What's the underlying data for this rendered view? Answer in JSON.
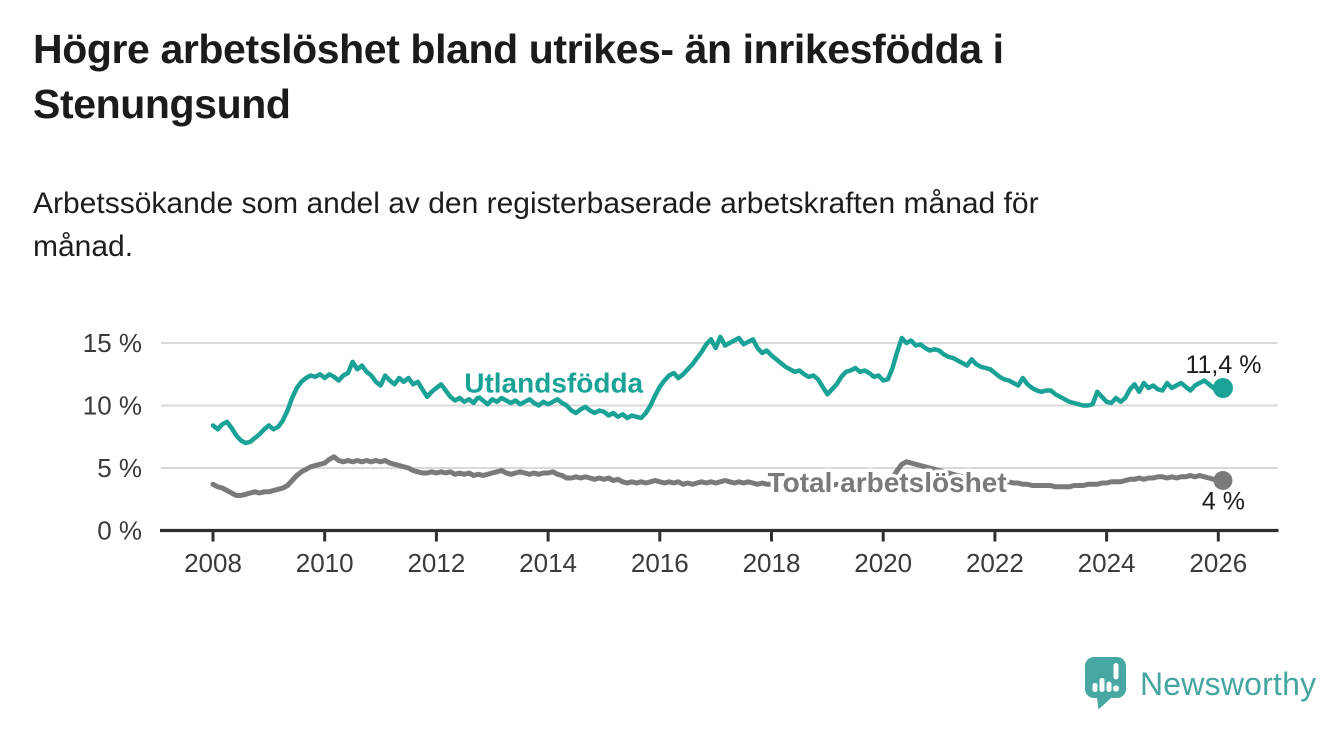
{
  "header": {
    "title_lines": [
      "Högre arbetslöshet bland utrikes- än inrikesfödda i",
      "Stenungsund"
    ],
    "subtitle_lines": [
      "Arbetssökande som andel av den registerbaserade arbetskraften månad för",
      "månad."
    ]
  },
  "branding": {
    "logo_text": "Newsworthy",
    "logo_icon": "bar-chart-speech-bubble-icon",
    "logo_color": "#45a5a0"
  },
  "chart_data": {
    "type": "line",
    "unit": "%",
    "grid": "horizontal",
    "x_start_year": 2008,
    "points_per_year": 12,
    "xlim": [
      2007.1,
      2027.1
    ],
    "ylim": [
      0,
      16.6
    ],
    "x_ticks": [
      "2008",
      "2010",
      "2012",
      "2014",
      "2016",
      "2018",
      "2020",
      "2022",
      "2024",
      "2026"
    ],
    "x_tick_years": [
      2008,
      2010,
      2012,
      2014,
      2016,
      2018,
      2020,
      2022,
      2024,
      2026
    ],
    "y_ticks": [
      0,
      5,
      10,
      15
    ],
    "y_tick_labels": [
      "0 %",
      "5 %",
      "10 %",
      "15 %"
    ],
    "colors": {
      "utlandsfodda": "#1aa296",
      "total": "#7a7a7a",
      "gridline": "#d9d9d9",
      "axis": "#2e2e2e",
      "tick_text": "#3a3a3a"
    },
    "series": [
      {
        "name": "Utlandsfödda",
        "color": "#1aa296",
        "line_width": 4.5,
        "end_value": 11.4,
        "end_label": "11,4 %",
        "label_anchor": {
          "year": 2014.1,
          "value": 11.05
        },
        "values": [
          8.4,
          8.1,
          8.5,
          8.7,
          8.2,
          7.6,
          7.2,
          7.0,
          7.1,
          7.4,
          7.7,
          8.1,
          8.4,
          8.1,
          8.3,
          8.8,
          9.6,
          10.6,
          11.4,
          11.9,
          12.2,
          12.4,
          12.3,
          12.5,
          12.2,
          12.5,
          12.3,
          12.0,
          12.4,
          12.6,
          13.5,
          12.9,
          13.2,
          12.7,
          12.4,
          11.9,
          11.6,
          12.4,
          12.0,
          11.7,
          12.2,
          11.9,
          12.2,
          11.7,
          11.9,
          11.3,
          10.7,
          11.1,
          11.4,
          11.7,
          11.2,
          10.7,
          10.4,
          10.6,
          10.3,
          10.5,
          10.2,
          10.7,
          10.4,
          10.1,
          10.5,
          10.3,
          10.6,
          10.4,
          10.2,
          10.4,
          10.1,
          10.3,
          10.5,
          10.2,
          10.0,
          10.3,
          10.1,
          10.3,
          10.5,
          10.2,
          10.0,
          9.6,
          9.4,
          9.7,
          9.9,
          9.6,
          9.4,
          9.6,
          9.5,
          9.2,
          9.4,
          9.1,
          9.3,
          9.0,
          9.2,
          9.1,
          9.0,
          9.4,
          10.0,
          10.8,
          11.5,
          12.0,
          12.4,
          12.6,
          12.2,
          12.5,
          12.9,
          13.3,
          13.8,
          14.3,
          14.9,
          15.3,
          14.6,
          15.5,
          14.8,
          15.0,
          15.2,
          15.4,
          14.9,
          15.1,
          15.3,
          14.6,
          14.2,
          14.4,
          14.0,
          13.7,
          13.4,
          13.1,
          12.9,
          12.7,
          12.8,
          12.5,
          12.3,
          12.4,
          12.1,
          11.5,
          10.9,
          11.3,
          11.7,
          12.3,
          12.7,
          12.8,
          13.0,
          12.7,
          12.8,
          12.6,
          12.3,
          12.4,
          12.0,
          12.1,
          13.0,
          14.3,
          15.4,
          15.0,
          15.2,
          14.8,
          14.9,
          14.6,
          14.4,
          14.5,
          14.4,
          14.1,
          13.9,
          13.8,
          13.6,
          13.4,
          13.2,
          13.7,
          13.3,
          13.1,
          13.0,
          12.9,
          12.6,
          12.3,
          12.1,
          12.0,
          11.8,
          11.6,
          12.2,
          11.7,
          11.4,
          11.2,
          11.1,
          11.2,
          11.2,
          10.9,
          10.7,
          10.5,
          10.3,
          10.2,
          10.1,
          10.0,
          10.0,
          10.1,
          11.1,
          10.7,
          10.3,
          10.2,
          10.6,
          10.3,
          10.6,
          11.3,
          11.7,
          11.1,
          11.8,
          11.4,
          11.6,
          11.3,
          11.2,
          11.8,
          11.4,
          11.6,
          11.8,
          11.5,
          11.2,
          11.6,
          11.8,
          12.0,
          11.7,
          11.4,
          11.2,
          11.4
        ]
      },
      {
        "name": "Total arbetslöshet",
        "color": "#7a7a7a",
        "line_width": 5,
        "end_value": 4.0,
        "end_label": "4 %",
        "label_anchor": {
          "year": 2020.07,
          "value": 3.1
        },
        "values": [
          3.7,
          3.5,
          3.4,
          3.2,
          3.0,
          2.8,
          2.8,
          2.9,
          3.0,
          3.1,
          3.0,
          3.1,
          3.1,
          3.2,
          3.3,
          3.4,
          3.6,
          4.0,
          4.4,
          4.7,
          4.9,
          5.1,
          5.2,
          5.3,
          5.4,
          5.7,
          5.9,
          5.6,
          5.5,
          5.6,
          5.5,
          5.6,
          5.5,
          5.6,
          5.5,
          5.6,
          5.5,
          5.6,
          5.4,
          5.3,
          5.2,
          5.1,
          5.0,
          4.8,
          4.7,
          4.6,
          4.6,
          4.7,
          4.6,
          4.7,
          4.6,
          4.7,
          4.5,
          4.6,
          4.5,
          4.6,
          4.4,
          4.5,
          4.4,
          4.5,
          4.6,
          4.7,
          4.8,
          4.6,
          4.5,
          4.6,
          4.7,
          4.6,
          4.5,
          4.6,
          4.5,
          4.6,
          4.6,
          4.7,
          4.5,
          4.4,
          4.2,
          4.2,
          4.3,
          4.2,
          4.3,
          4.2,
          4.1,
          4.2,
          4.1,
          4.2,
          4.0,
          4.1,
          3.9,
          3.8,
          3.9,
          3.8,
          3.9,
          3.8,
          3.9,
          4.0,
          3.9,
          3.8,
          3.9,
          3.8,
          3.9,
          3.7,
          3.8,
          3.7,
          3.8,
          3.9,
          3.8,
          3.9,
          3.8,
          3.9,
          4.0,
          3.9,
          3.8,
          3.9,
          3.8,
          3.9,
          3.8,
          3.7,
          3.8,
          3.7,
          3.7,
          3.8,
          3.7,
          3.6,
          3.7,
          3.6,
          3.7,
          3.6,
          3.5,
          3.6,
          3.5,
          3.6,
          3.5,
          3.6,
          3.7,
          3.6,
          3.7,
          3.6,
          3.7,
          3.6,
          3.7,
          3.6,
          3.7,
          3.8,
          3.8,
          3.9,
          4.2,
          4.8,
          5.3,
          5.5,
          5.4,
          5.3,
          5.2,
          5.1,
          5.0,
          4.9,
          4.8,
          4.7,
          4.6,
          4.5,
          4.4,
          4.3,
          4.3,
          4.2,
          4.2,
          4.1,
          4.1,
          4.0,
          4.0,
          4.0,
          3.9,
          3.9,
          3.8,
          3.8,
          3.7,
          3.7,
          3.6,
          3.6,
          3.6,
          3.6,
          3.6,
          3.5,
          3.5,
          3.5,
          3.5,
          3.6,
          3.6,
          3.6,
          3.7,
          3.7,
          3.7,
          3.8,
          3.8,
          3.9,
          3.9,
          3.9,
          4.0,
          4.1,
          4.1,
          4.2,
          4.1,
          4.2,
          4.2,
          4.3,
          4.3,
          4.2,
          4.3,
          4.2,
          4.3,
          4.3,
          4.4,
          4.3,
          4.4,
          4.3,
          4.2,
          4.1,
          4.1,
          4.0
        ]
      }
    ]
  }
}
